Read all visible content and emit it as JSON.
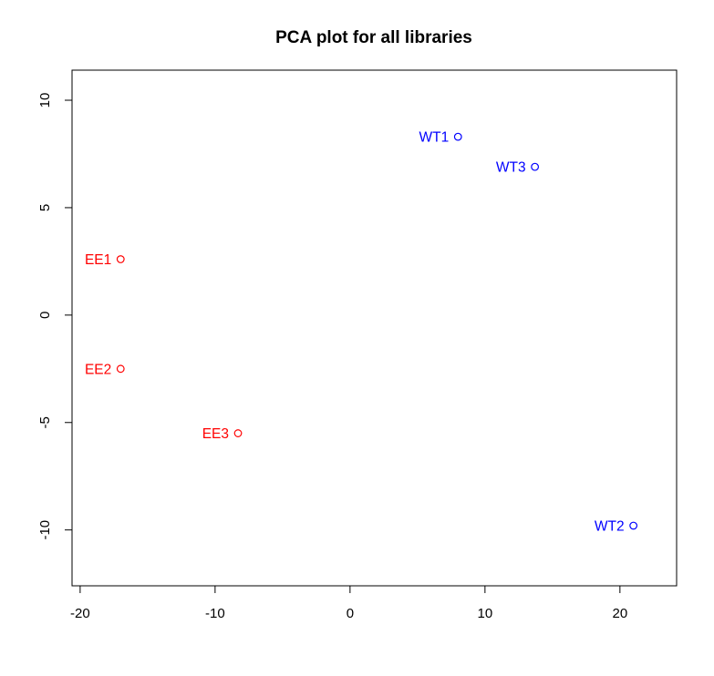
{
  "chart_data": {
    "type": "scatter",
    "title": "PCA plot for all libraries",
    "xlabel": "",
    "ylabel": "",
    "xlim": [
      -20.6,
      24.2
    ],
    "ylim": [
      -12.6,
      11.4
    ],
    "x_ticks": [
      -20,
      -10,
      0,
      10,
      20
    ],
    "y_ticks": [
      -10,
      -5,
      0,
      5,
      10
    ],
    "x_tick_labels": [
      "-20",
      "-10",
      "0",
      "10",
      "20"
    ],
    "y_tick_labels": [
      "-10",
      "-5",
      "0",
      "5",
      "10"
    ],
    "marker": "open-circle",
    "label_position": "left",
    "grid": false,
    "points": [
      {
        "label": "EE1",
        "x": -17.0,
        "y": 2.6,
        "color": "#ff0000"
      },
      {
        "label": "EE2",
        "x": -17.0,
        "y": -2.5,
        "color": "#ff0000"
      },
      {
        "label": "EE3",
        "x": -8.3,
        "y": -5.5,
        "color": "#ff0000"
      },
      {
        "label": "WT1",
        "x": 8.0,
        "y": 8.3,
        "color": "#0000ff"
      },
      {
        "label": "WT3",
        "x": 13.7,
        "y": 6.9,
        "color": "#0000ff"
      },
      {
        "label": "WT2",
        "x": 21.0,
        "y": -9.8,
        "color": "#0000ff"
      }
    ]
  }
}
